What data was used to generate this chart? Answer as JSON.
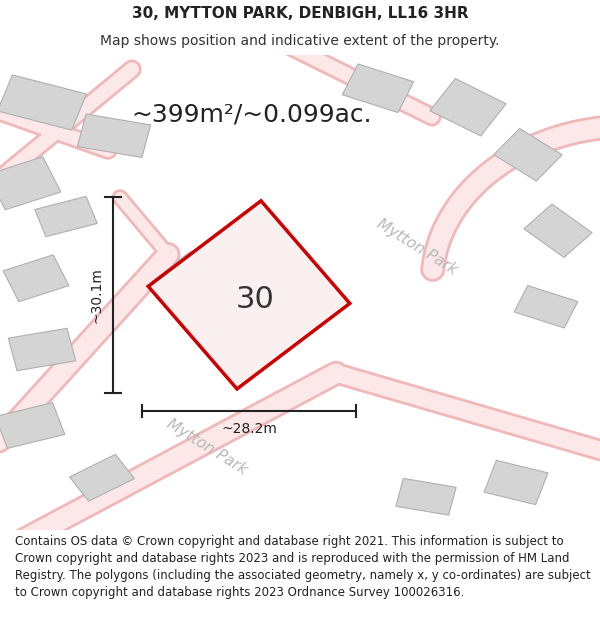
{
  "title": "30, MYTTON PARK, DENBIGH, LL16 3HR",
  "subtitle": "Map shows position and indicative extent of the property.",
  "area_text": "~399m²/~0.099ac.",
  "width_label": "~28.2m",
  "height_label": "~30.1m",
  "plot_number": "30",
  "plot_stroke": "#cc0000",
  "plot_fill": "#faf0f0",
  "dim_line_color": "#222222",
  "street_label_color": "#b8b8b8",
  "road_color": "#f0b8b8",
  "road_inner_color": "#fce8e8",
  "building_fill": "#d4d4d4",
  "building_stroke": "#b0b0b0",
  "map_bg": "#f0eeee",
  "footer_text": "Contains OS data © Crown copyright and database right 2021. This information is subject to Crown copyright and database rights 2023 and is reproduced with the permission of HM Land Registry. The polygons (including the associated geometry, namely x, y co-ordinates) are subject to Crown copyright and database rights 2023 Ordnance Survey 100026316.",
  "title_fontsize": 11,
  "subtitle_fontsize": 10,
  "area_fontsize": 18,
  "plot_number_fontsize": 22,
  "footer_fontsize": 8.5,
  "street_label_fontsize": 11,
  "dim_fontsize": 10
}
